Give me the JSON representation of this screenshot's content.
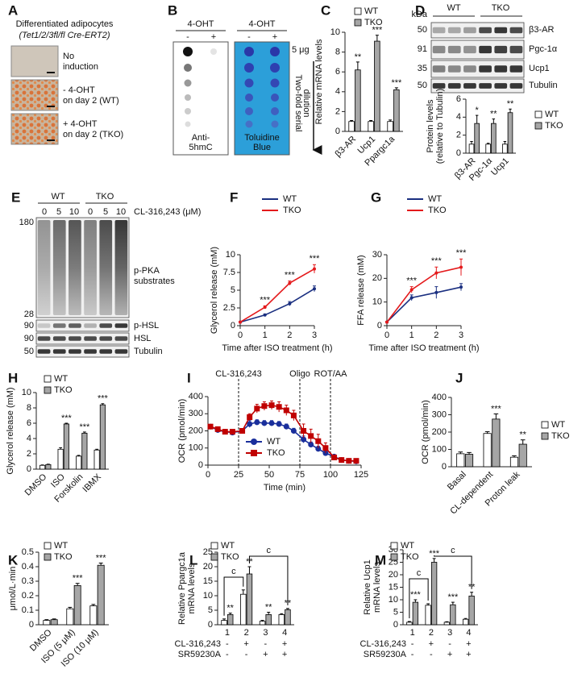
{
  "chart_data": [
    {
      "type": "bar",
      "panel": "C",
      "ylabel": "Relative mRNA levels",
      "categories": [
        "β3-AR",
        "Ucp1",
        "Ppargc1a"
      ],
      "series": [
        {
          "name": "WT",
          "color": "#ffffff",
          "values": [
            1,
            1,
            1
          ],
          "errors": [
            0.1,
            0.1,
            0.15
          ]
        },
        {
          "name": "TKO",
          "color": "#a6a6a6",
          "values": [
            6.2,
            9.1,
            4.2
          ],
          "errors": [
            0.8,
            0.6,
            0.2
          ]
        }
      ],
      "significance": [
        "**",
        "***",
        "***"
      ],
      "ylim": [
        0,
        10
      ],
      "yticks": [
        0,
        2,
        4,
        6,
        8,
        10
      ]
    },
    {
      "type": "bar",
      "panel": "D",
      "ylabel": [
        "Protein levels",
        "(relative to Tubulin)"
      ],
      "categories": [
        "β3-AR",
        "Pgc-1α",
        "Ucp1"
      ],
      "series": [
        {
          "name": "WT",
          "color": "#ffffff",
          "values": [
            1,
            1,
            1
          ],
          "errors": [
            0.3,
            0.1,
            0.3
          ]
        },
        {
          "name": "TKO",
          "color": "#a6a6a6",
          "values": [
            3.3,
            3.3,
            4.5
          ],
          "errors": [
            0.9,
            0.5,
            0.4
          ]
        }
      ],
      "significance": [
        "*",
        "**",
        "**"
      ],
      "ylim": [
        0,
        6
      ],
      "yticks": [
        0,
        2,
        4,
        6
      ]
    },
    {
      "type": "line",
      "panel": "F",
      "xlabel": "Time after ISO treatment (h)",
      "ylabel": "Glycerol release (mM)",
      "x": [
        0,
        1,
        2,
        3
      ],
      "xlim": [
        0,
        3
      ],
      "xticks": [
        0,
        1,
        2,
        3
      ],
      "ylim": [
        0,
        10
      ],
      "yticks": [
        0,
        2.5,
        5,
        7.5,
        10
      ],
      "series": [
        {
          "name": "WT",
          "color": "#1a2f80",
          "values": [
            0.5,
            1.5,
            3.1,
            5.2
          ],
          "errors": [
            0.1,
            0.15,
            0.3,
            0.4
          ]
        },
        {
          "name": "TKO",
          "color": "#e41a1c",
          "values": [
            0.5,
            2.6,
            6.0,
            8.0
          ],
          "errors": [
            0.1,
            0.2,
            0.3,
            0.6
          ]
        }
      ],
      "significance": [
        null,
        "***",
        "***",
        "***"
      ]
    },
    {
      "type": "line",
      "panel": "G",
      "xlabel": "Time after ISO treatment (h)",
      "ylabel": "FFA release (mM)",
      "x": [
        0,
        1,
        2,
        3
      ],
      "xlim": [
        0,
        3
      ],
      "xticks": [
        0,
        1,
        2,
        3
      ],
      "ylim": [
        0,
        30
      ],
      "yticks": [
        0,
        10,
        20,
        30
      ],
      "series": [
        {
          "name": "WT",
          "color": "#1a2f80",
          "values": [
            1.5,
            11.8,
            14,
            16.3
          ],
          "errors": [
            0.3,
            1.2,
            2.5,
            1.5
          ]
        },
        {
          "name": "TKO",
          "color": "#e41a1c",
          "values": [
            1.5,
            15.2,
            22.3,
            24.7
          ],
          "errors": [
            0.3,
            1.3,
            2.5,
            3.5
          ]
        }
      ],
      "significance": [
        null,
        "***",
        "***",
        "***"
      ]
    },
    {
      "type": "bar",
      "panel": "H",
      "ylabel": "Glycerol release (mM)",
      "categories": [
        "DMSO",
        "ISO",
        "Forskolin",
        "IBMX"
      ],
      "series": [
        {
          "name": "WT",
          "color": "#ffffff",
          "values": [
            0.5,
            2.6,
            1.7,
            2.5
          ],
          "errors": [
            0.05,
            0.2,
            0.1,
            0.1
          ]
        },
        {
          "name": "TKO",
          "color": "#a6a6a6",
          "values": [
            0.6,
            5.9,
            4.7,
            8.4
          ],
          "errors": [
            0.05,
            0.1,
            0.15,
            0.15
          ]
        }
      ],
      "significance": [
        null,
        "***",
        "***",
        "***"
      ],
      "ylim": [
        0,
        10
      ],
      "yticks": [
        0,
        2,
        4,
        6,
        8,
        10
      ]
    },
    {
      "type": "line",
      "panel": "I",
      "xlabel": "Time (min)",
      "ylabel": "OCR (pmol/min)",
      "x": [
        2,
        8,
        14,
        20,
        28,
        34,
        40,
        46,
        52,
        58,
        64,
        70,
        78,
        84,
        90,
        96,
        103,
        109,
        115,
        121
      ],
      "xlim": [
        0,
        125
      ],
      "xticks": [
        0,
        25,
        50,
        75,
        100,
        125
      ],
      "ylim": [
        0,
        400
      ],
      "yticks": [
        0,
        100,
        200,
        300,
        400
      ],
      "series": [
        {
          "name": "WT",
          "color": "#1a2f9c",
          "marker": "circle",
          "values": [
            225,
            205,
            195,
            190,
            200,
            240,
            250,
            245,
            245,
            240,
            225,
            200,
            150,
            120,
            95,
            70,
            50,
            30,
            25,
            22
          ],
          "errors": [
            10,
            10,
            10,
            10,
            10,
            20,
            15,
            15,
            15,
            15,
            15,
            15,
            20,
            15,
            15,
            10,
            5,
            5,
            5,
            5
          ]
        },
        {
          "name": "TKO",
          "color": "#c00000",
          "marker": "square",
          "values": [
            225,
            210,
            195,
            195,
            200,
            280,
            330,
            345,
            350,
            340,
            320,
            290,
            200,
            170,
            140,
            100,
            45,
            30,
            25,
            25
          ],
          "errors": [
            10,
            10,
            10,
            10,
            10,
            20,
            25,
            25,
            25,
            30,
            30,
            30,
            40,
            40,
            40,
            30,
            10,
            5,
            5,
            5
          ]
        }
      ],
      "events": [
        {
          "x": 25,
          "label": "CL-316,243"
        },
        {
          "x": 75,
          "label": "Oligo"
        },
        {
          "x": 100,
          "label": "ROT/AA"
        }
      ]
    },
    {
      "type": "bar",
      "panel": "J",
      "ylabel": "OCR (pmol/min)",
      "categories": [
        "Basal",
        "CL-dependent",
        "Proton leak"
      ],
      "series": [
        {
          "name": "WT",
          "color": "#ffffff",
          "values": [
            75,
            192,
            55
          ],
          "errors": [
            10,
            10,
            8
          ]
        },
        {
          "name": "TKO",
          "color": "#a6a6a6",
          "values": [
            72,
            275,
            130
          ],
          "errors": [
            10,
            30,
            25
          ]
        }
      ],
      "significance": [
        null,
        "***",
        "**"
      ],
      "ylim": [
        0,
        400
      ],
      "yticks": [
        0,
        100,
        200,
        300,
        400
      ]
    },
    {
      "type": "bar",
      "panel": "K",
      "ylabel": "μmol/L·min",
      "categories": [
        "DMSO",
        "ISO (5 μM)",
        "ISO (10 μM)"
      ],
      "series": [
        {
          "name": "WT",
          "color": "#ffffff",
          "values": [
            0.03,
            0.11,
            0.13
          ],
          "errors": [
            0.005,
            0.01,
            0.01
          ]
        },
        {
          "name": "TKO",
          "color": "#a6a6a6",
          "values": [
            0.035,
            0.27,
            0.41
          ],
          "errors": [
            0.005,
            0.015,
            0.015
          ]
        }
      ],
      "significance": [
        null,
        "***",
        "***"
      ],
      "ylim": [
        0,
        0.5
      ],
      "yticks": [
        0,
        0.1,
        0.2,
        0.3,
        0.4,
        0.5
      ]
    },
    {
      "type": "bar",
      "panel": "L",
      "ylabel": [
        "Relative Ppargc1a",
        "mRNA levels"
      ],
      "categories": [
        "1",
        "2",
        "3",
        "4"
      ],
      "series": [
        {
          "name": "WT",
          "color": "#ffffff",
          "values": [
            1.5,
            10.5,
            1.2,
            3.5
          ],
          "errors": [
            0.5,
            1.5,
            0.3,
            0.3
          ]
        },
        {
          "name": "TKO",
          "color": "#a6a6a6",
          "values": [
            3.5,
            17.5,
            3.5,
            5.2
          ],
          "errors": [
            0.5,
            2.5,
            0.8,
            0.4
          ]
        }
      ],
      "significance": [
        "**",
        "**",
        "**",
        "**"
      ],
      "brackets": [
        "c",
        "c"
      ],
      "ylim": [
        0,
        25
      ],
      "yticks": [
        0,
        5,
        10,
        15,
        20,
        25
      ],
      "treatments": [
        {
          "name": "CL-316,243",
          "levels": [
            "-",
            "+",
            "-",
            "+"
          ]
        },
        {
          "name": "SR59230A",
          "levels": [
            "-",
            "-",
            "+",
            "+"
          ]
        }
      ]
    },
    {
      "type": "bar",
      "panel": "M",
      "ylabel": [
        "Relative Ucp1",
        "mRNA levels"
      ],
      "categories": [
        "1",
        "2",
        "3",
        "4"
      ],
      "series": [
        {
          "name": "WT",
          "color": "#ffffff",
          "values": [
            1,
            7.8,
            1,
            2.2
          ],
          "errors": [
            0.3,
            0.6,
            0.2,
            0.3
          ]
        },
        {
          "name": "TKO",
          "color": "#a6a6a6",
          "values": [
            9,
            25,
            8,
            11.5
          ],
          "errors": [
            1,
            1.5,
            1,
            1.5
          ]
        }
      ],
      "significance": [
        "***",
        "***",
        "***",
        "**"
      ],
      "brackets": [
        "c",
        "c"
      ],
      "ylim": [
        0,
        30
      ],
      "yticks": [
        0,
        5,
        10,
        15,
        20,
        25,
        30
      ],
      "treatments": [
        {
          "name": "CL-316,243",
          "levels": [
            "-",
            "+",
            "-",
            "+"
          ]
        },
        {
          "name": "SR59230A",
          "levels": [
            "-",
            "-",
            "+",
            "+"
          ]
        }
      ]
    }
  ],
  "figure": {
    "A": {
      "panel": "A",
      "title": "Differentiated adipocytes",
      "genotype": "(Tet1/2/3fl/fl Cre-ERT2)",
      "images": [
        [
          "No",
          "induction"
        ],
        [
          "- 4-OHT",
          "on day 2 (WT)"
        ],
        [
          "+ 4-OHT",
          "on day 2 (TKO)"
        ]
      ]
    },
    "B": {
      "panel": "B",
      "treatment": [
        "4-OHT",
        "4-OHT"
      ],
      "lanes": [
        "-",
        "+",
        "-",
        "+"
      ],
      "amount": "5 μg",
      "dilution": [
        "Two-fold serial",
        "dilution"
      ],
      "stains": [
        [
          "Anti-",
          "5hmC"
        ],
        [
          "Toluidine",
          "Blue"
        ]
      ]
    },
    "D": {
      "unit": "kDa",
      "groups": [
        "WT",
        "TKO"
      ],
      "markers": [
        "50",
        "91",
        "35",
        "50"
      ],
      "proteins": [
        "β3-AR",
        "Pgc-1α",
        "Ucp1",
        "Tubulin"
      ]
    },
    "E": {
      "panel": "E",
      "groups": [
        "WT",
        "TKO"
      ],
      "doses": [
        "0",
        "5",
        "10",
        "0",
        "5",
        "10"
      ],
      "treatment": "CL-316,243 (μM)",
      "markers": [
        "180",
        "28",
        "90",
        "90",
        "50"
      ],
      "proteins": [
        [
          "p-PKA",
          "substrates"
        ],
        "p-HSL",
        "HSL",
        "Tubulin"
      ]
    }
  }
}
